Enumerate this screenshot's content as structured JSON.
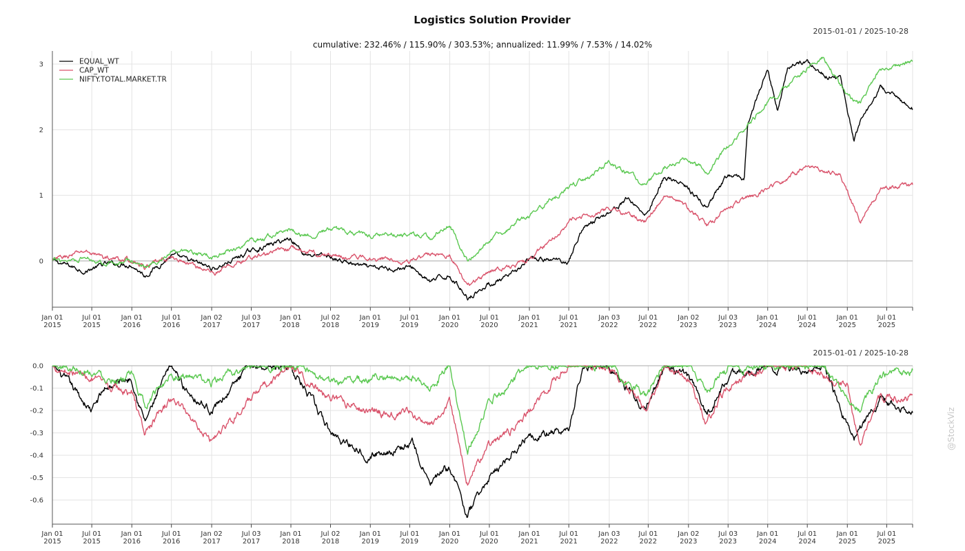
{
  "chart_data": [
    {
      "type": "line",
      "title": "Logistics Solution Provider",
      "subtitle": "cumulative: 232.46% / 115.90% / 303.53%; annualized: 11.99% / 7.53% / 14.02%",
      "date_range": "2015-01-01 / 2025-10-28",
      "ylim": [
        -0.6,
        3.2
      ],
      "yticks": [
        0,
        1,
        2,
        3
      ],
      "ytick_labels": [
        "0",
        "1",
        "2",
        "3"
      ],
      "xlim": [
        "2015-01-01",
        "2025-10-28"
      ],
      "xticks": [
        "2015-01-01",
        "2015-07-01",
        "2016-01-01",
        "2016-07-01",
        "2017-01-02",
        "2017-07-03",
        "2018-01-01",
        "2018-07-02",
        "2019-01-01",
        "2019-07-01",
        "2020-01-01",
        "2020-07-01",
        "2021-01-01",
        "2021-07-01",
        "2022-01-03",
        "2022-07-01",
        "2023-01-02",
        "2023-07-03",
        "2024-01-01",
        "2024-07-01",
        "2025-01-01",
        "2025-07-01"
      ],
      "xtick_labels": [
        [
          "Jan 01",
          "2015"
        ],
        [
          "Jul 01",
          "2015"
        ],
        [
          "Jan 01",
          "2016"
        ],
        [
          "Jul 01",
          "2016"
        ],
        [
          "Jan 02",
          "2017"
        ],
        [
          "Jul 03",
          "2017"
        ],
        [
          "Jan 01",
          "2018"
        ],
        [
          "Jul 02",
          "2018"
        ],
        [
          "Jan 01",
          "2019"
        ],
        [
          "Jul 01",
          "2019"
        ],
        [
          "Jan 01",
          "2020"
        ],
        [
          "Jul 01",
          "2020"
        ],
        [
          "Jan 01",
          "2021"
        ],
        [
          "Jul 01",
          "2021"
        ],
        [
          "Jan 03",
          "2022"
        ],
        [
          "Jul 01",
          "2022"
        ],
        [
          "Jan 02",
          "2023"
        ],
        [
          "Jul 03",
          "2023"
        ],
        [
          "Jan 01",
          "2024"
        ],
        [
          "Jul 01",
          "2024"
        ],
        [
          "Jan 01",
          "2025"
        ],
        [
          "Jul 01",
          "2025"
        ]
      ],
      "grid": true,
      "legend": "top-left",
      "series": [
        {
          "name": "EQUAL_WT",
          "color": "#000000",
          "x": [
            "2015-01-01",
            "2015-06-01",
            "2015-09-01",
            "2016-01-01",
            "2016-03-01",
            "2016-07-01",
            "2017-01-15",
            "2017-07-01",
            "2018-01-01",
            "2018-03-01",
            "2018-07-01",
            "2019-01-01",
            "2019-07-15",
            "2019-10-01",
            "2020-01-01",
            "2020-03-23",
            "2020-07-01",
            "2020-10-01",
            "2021-01-01",
            "2021-07-01",
            "2021-09-01",
            "2022-01-03",
            "2022-04-01",
            "2022-06-20",
            "2022-09-15",
            "2023-01-02",
            "2023-03-28",
            "2023-07-03",
            "2023-09-15",
            "2023-10-01",
            "2024-01-01",
            "2024-02-15",
            "2024-04-01",
            "2024-07-01",
            "2024-09-01",
            "2024-12-01",
            "2025-02-01",
            "2025-03-01",
            "2025-05-01",
            "2025-06-01",
            "2025-10-28"
          ],
          "values": [
            0,
            -0.15,
            -0.05,
            -0.05,
            -0.22,
            0.08,
            -0.12,
            0.15,
            0.35,
            0.12,
            0.05,
            -0.12,
            -0.1,
            -0.32,
            -0.22,
            -0.55,
            -0.35,
            -0.25,
            0.02,
            0.0,
            0.5,
            0.75,
            0.95,
            0.7,
            1.3,
            1.1,
            0.8,
            1.3,
            1.25,
            2.1,
            2.9,
            2.3,
            2.95,
            3.05,
            2.85,
            2.8,
            1.8,
            2.1,
            2.4,
            2.65,
            2.32
          ]
        },
        {
          "name": "CAP_WT",
          "color": "#d9536b",
          "x": [
            "2015-01-01",
            "2015-06-01",
            "2015-09-01",
            "2016-01-01",
            "2016-03-01",
            "2016-07-01",
            "2017-01-15",
            "2017-07-01",
            "2018-01-01",
            "2018-03-01",
            "2018-07-01",
            "2019-01-01",
            "2019-07-15",
            "2019-10-01",
            "2020-01-01",
            "2020-03-23",
            "2020-07-01",
            "2021-01-01",
            "2021-04-01",
            "2021-07-01",
            "2022-01-03",
            "2022-06-20",
            "2022-09-15",
            "2023-01-02",
            "2023-03-28",
            "2023-07-03",
            "2024-01-01",
            "2024-07-01",
            "2024-12-01",
            "2025-03-01",
            "2025-06-01",
            "2025-10-28"
          ],
          "values": [
            0,
            0.15,
            0.05,
            0.0,
            -0.1,
            0.05,
            -0.18,
            0.05,
            0.2,
            0.15,
            0.08,
            0.05,
            0.0,
            0.1,
            0.1,
            -0.4,
            -0.15,
            0.0,
            0.3,
            0.6,
            0.8,
            0.6,
            1.0,
            0.8,
            0.55,
            0.8,
            1.1,
            1.45,
            1.3,
            0.6,
            1.1,
            1.16
          ]
        },
        {
          "name": "NIFTY.TOTAL.MARKET.TR",
          "color": "#5ac850",
          "x": [
            "2015-01-01",
            "2015-06-01",
            "2015-09-01",
            "2016-01-01",
            "2016-03-01",
            "2016-07-01",
            "2017-01-15",
            "2017-07-01",
            "2018-01-01",
            "2018-03-01",
            "2018-07-01",
            "2019-01-01",
            "2019-07-15",
            "2019-10-01",
            "2020-01-01",
            "2020-03-23",
            "2020-07-01",
            "2021-01-01",
            "2021-07-01",
            "2022-01-03",
            "2022-06-20",
            "2022-09-15",
            "2023-01-02",
            "2023-03-28",
            "2023-07-03",
            "2024-01-01",
            "2024-07-01",
            "2024-09-15",
            "2025-01-01",
            "2025-03-01",
            "2025-06-01",
            "2025-10-28"
          ],
          "values": [
            0,
            0.05,
            -0.02,
            0.0,
            -0.1,
            0.12,
            0.08,
            0.28,
            0.48,
            0.38,
            0.48,
            0.4,
            0.4,
            0.35,
            0.55,
            -0.02,
            0.3,
            0.7,
            1.1,
            1.5,
            1.15,
            1.45,
            1.55,
            1.35,
            1.75,
            2.4,
            2.95,
            3.1,
            2.5,
            2.4,
            2.9,
            3.04
          ]
        }
      ]
    },
    {
      "type": "line",
      "title": "",
      "date_range": "2015-01-01 / 2025-10-28",
      "ylim": [
        -0.68,
        0.0
      ],
      "yticks": [
        0.0,
        -0.1,
        -0.2,
        -0.3,
        -0.4,
        -0.5,
        -0.6
      ],
      "ytick_labels": [
        "0.0",
        "-0.1",
        "-0.2",
        "-0.3",
        "-0.4",
        "-0.5",
        "-0.6"
      ],
      "grid": true,
      "series": [
        {
          "name": "EQUAL_WT",
          "color": "#000000",
          "x": [
            "2015-01-01",
            "2015-07-01",
            "2015-09-01",
            "2016-01-01",
            "2016-03-01",
            "2016-07-01",
            "2016-09-01",
            "2017-01-01",
            "2017-07-03",
            "2018-01-01",
            "2018-07-01",
            "2019-01-01",
            "2019-07-15",
            "2019-10-01",
            "2020-01-01",
            "2020-03-23",
            "2020-07-01",
            "2020-10-01",
            "2021-01-01",
            "2021-07-01",
            "2021-09-01",
            "2022-01-03",
            "2022-06-20",
            "2022-09-15",
            "2023-01-02",
            "2023-03-28",
            "2023-07-03",
            "2024-01-01",
            "2024-07-01",
            "2024-09-15",
            "2025-02-01",
            "2025-06-01",
            "2025-10-28"
          ],
          "values": [
            0,
            -0.2,
            -0.1,
            -0.05,
            -0.25,
            0.0,
            -0.1,
            -0.2,
            0.0,
            0.0,
            -0.3,
            -0.4,
            -0.35,
            -0.53,
            -0.45,
            -0.67,
            -0.5,
            -0.4,
            -0.3,
            -0.3,
            0.0,
            0.0,
            -0.2,
            0.0,
            -0.05,
            -0.22,
            -0.05,
            0.0,
            -0.02,
            0.0,
            -0.33,
            -0.15,
            -0.21
          ]
        },
        {
          "name": "CAP_WT",
          "color": "#d9536b",
          "x": [
            "2015-01-01",
            "2015-07-01",
            "2015-09-01",
            "2016-01-01",
            "2016-03-01",
            "2016-07-01",
            "2016-09-01",
            "2017-01-01",
            "2017-07-03",
            "2018-01-01",
            "2018-07-01",
            "2019-01-01",
            "2019-07-15",
            "2019-10-01",
            "2020-01-01",
            "2020-03-23",
            "2020-07-01",
            "2020-10-01",
            "2021-01-01",
            "2021-07-01",
            "2022-01-03",
            "2022-06-20",
            "2022-09-15",
            "2023-01-02",
            "2023-03-28",
            "2023-07-03",
            "2024-01-01",
            "2024-07-01",
            "2025-01-01",
            "2025-03-01",
            "2025-06-01",
            "2025-10-28"
          ],
          "values": [
            0,
            -0.05,
            -0.1,
            -0.12,
            -0.3,
            -0.15,
            -0.2,
            -0.33,
            -0.15,
            0.0,
            -0.15,
            -0.2,
            -0.22,
            -0.28,
            -0.15,
            -0.52,
            -0.35,
            -0.3,
            -0.2,
            0.0,
            0.0,
            -0.2,
            0.0,
            -0.05,
            -0.25,
            -0.1,
            0.0,
            0.0,
            -0.1,
            -0.35,
            -0.15,
            -0.13
          ]
        },
        {
          "name": "NIFTY.TOTAL.MARKET.TR",
          "color": "#5ac850",
          "x": [
            "2015-01-01",
            "2015-07-01",
            "2015-09-01",
            "2016-01-01",
            "2016-03-01",
            "2016-07-01",
            "2017-01-01",
            "2017-07-03",
            "2018-01-01",
            "2018-07-01",
            "2019-01-01",
            "2019-07-15",
            "2019-10-01",
            "2020-01-01",
            "2020-03-23",
            "2020-07-01",
            "2021-01-01",
            "2021-07-01",
            "2022-01-03",
            "2022-06-20",
            "2022-09-15",
            "2023-01-02",
            "2023-03-28",
            "2023-07-03",
            "2024-01-01",
            "2024-07-01",
            "2024-09-15",
            "2025-01-01",
            "2025-03-01",
            "2025-06-01",
            "2025-10-28"
          ],
          "values": [
            0,
            -0.02,
            -0.05,
            -0.05,
            -0.18,
            -0.03,
            -0.08,
            0.0,
            0.0,
            -0.08,
            -0.05,
            -0.05,
            -0.1,
            0.0,
            -0.38,
            -0.15,
            0.0,
            0.0,
            0.0,
            -0.15,
            0.0,
            -0.02,
            -0.1,
            -0.02,
            0.0,
            0.0,
            0.0,
            -0.15,
            -0.2,
            -0.05,
            -0.02
          ]
        }
      ]
    }
  ],
  "watermark": "@StockViz"
}
